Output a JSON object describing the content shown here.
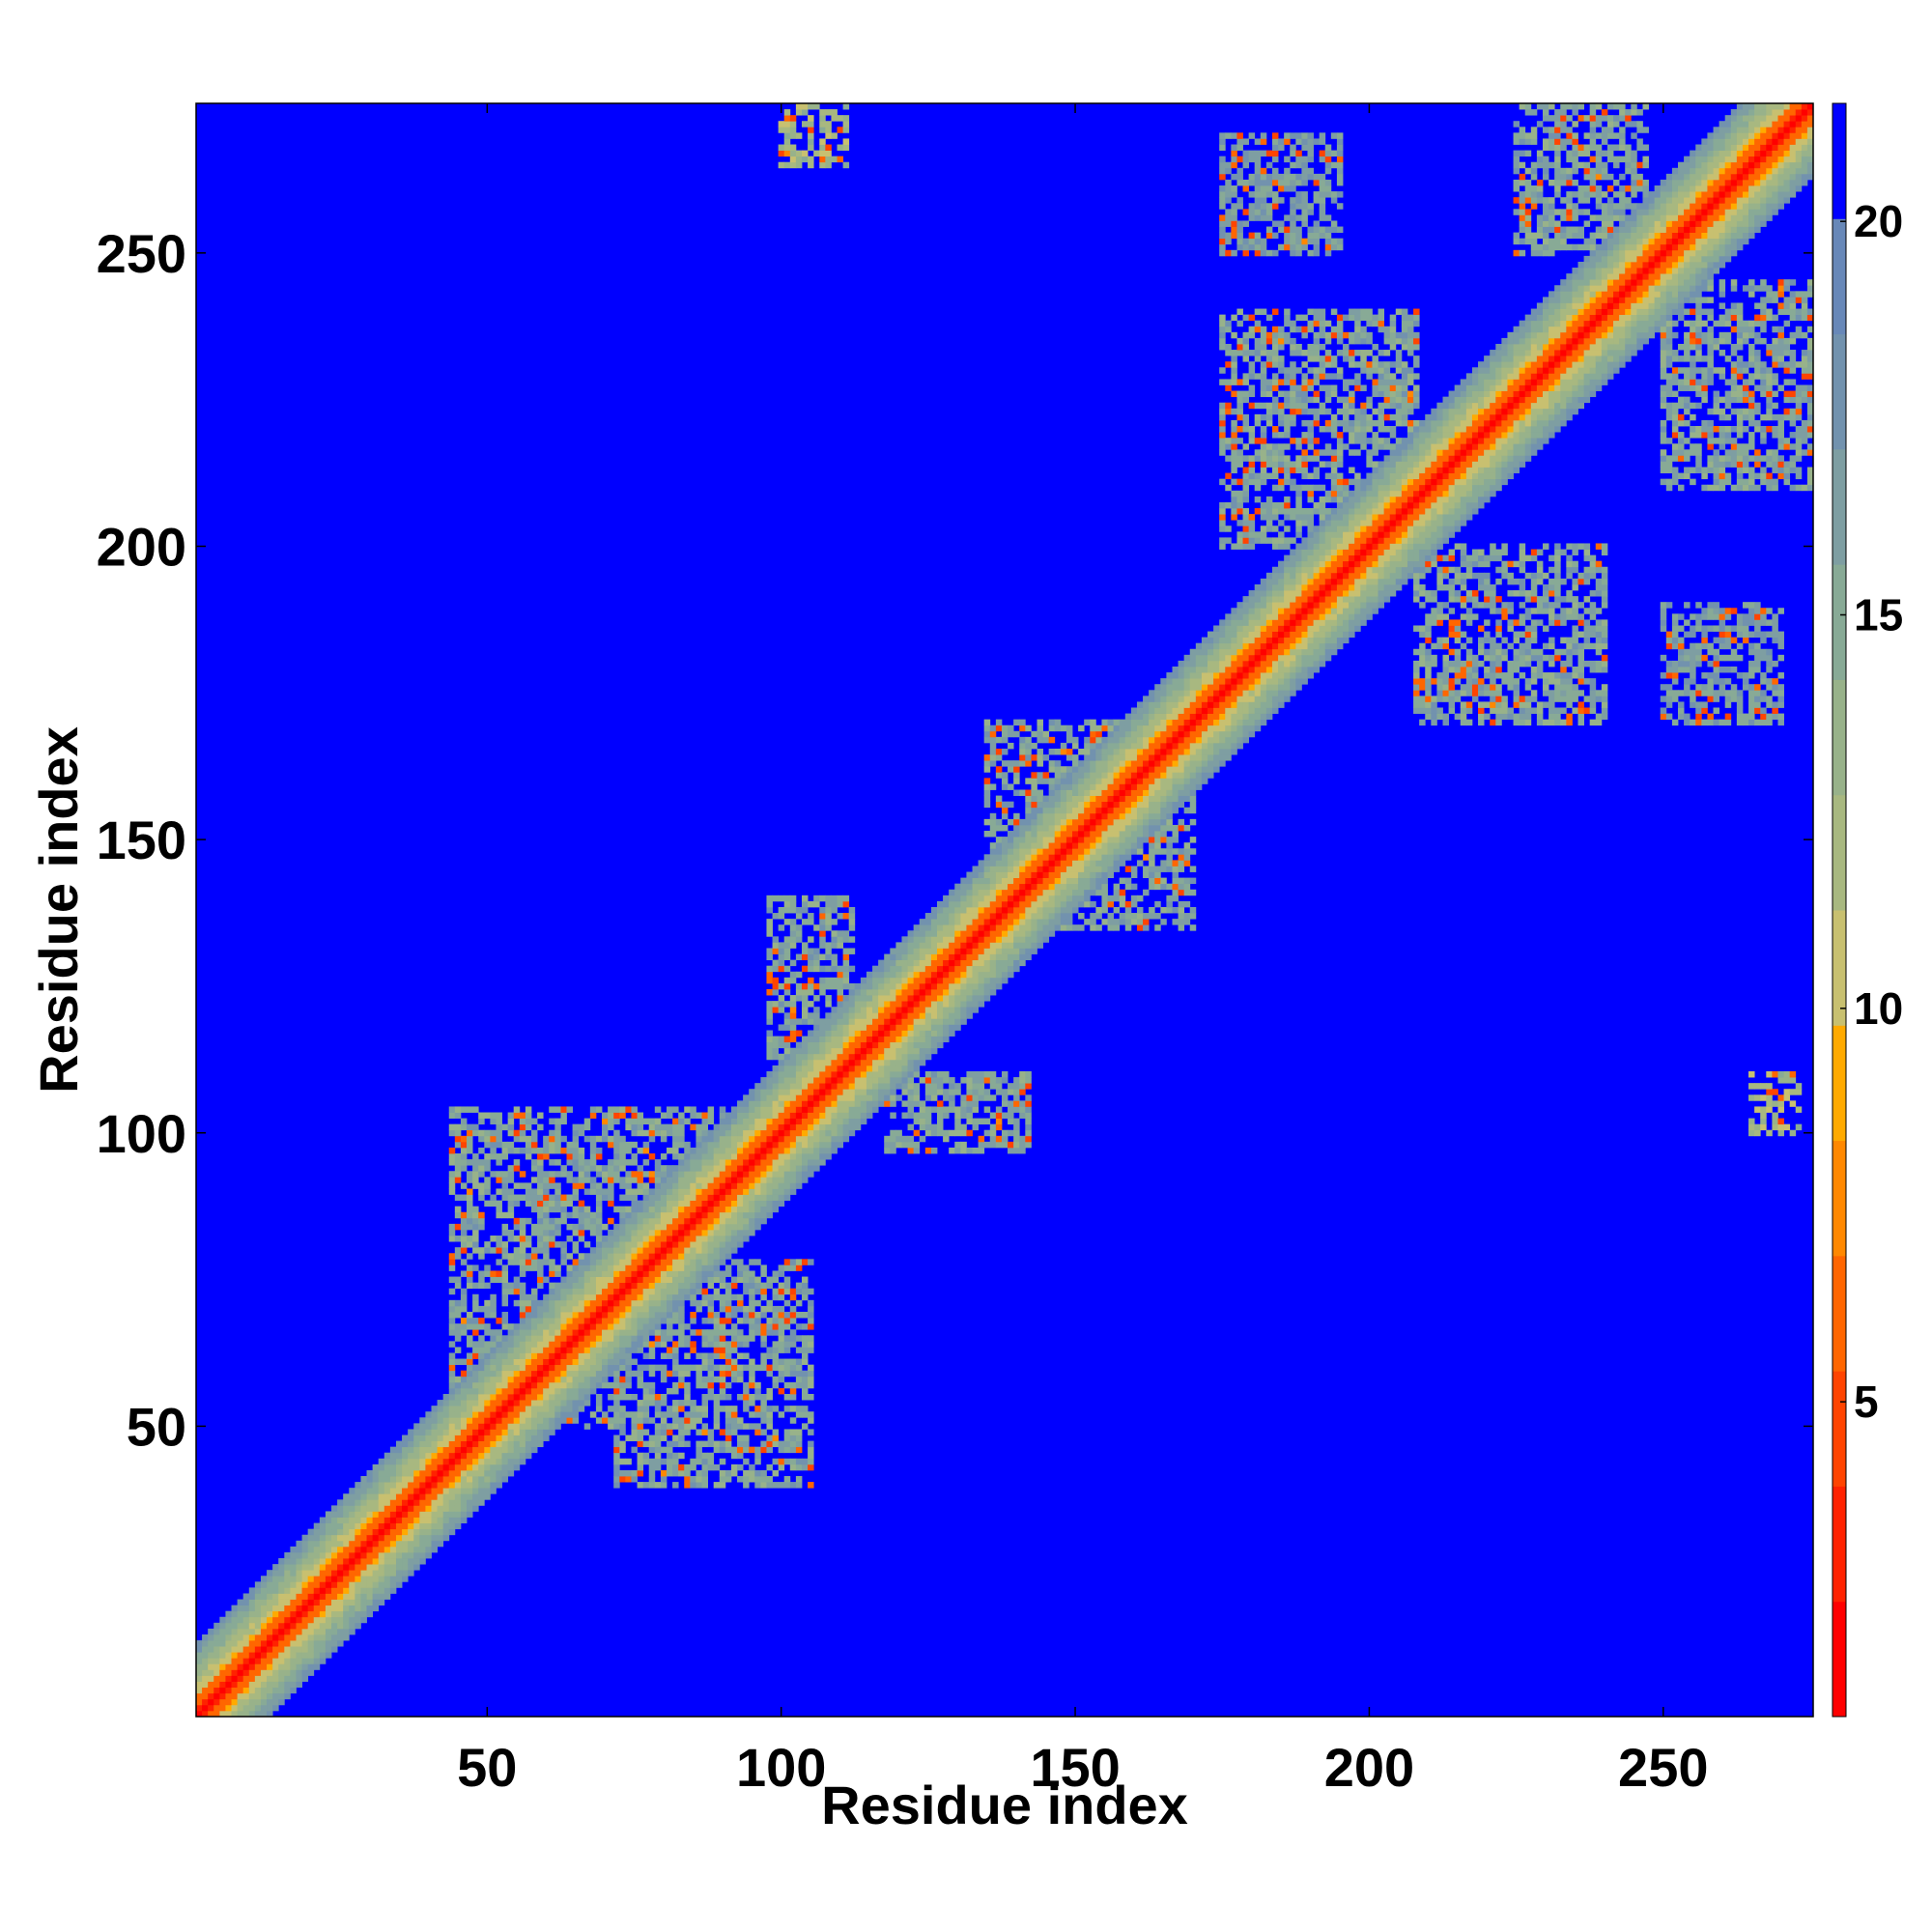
{
  "chart_data": {
    "type": "heatmap",
    "title": "",
    "xlabel": "Residue index",
    "ylabel": "Residue index",
    "xlim": [
      1,
      275
    ],
    "ylim": [
      1,
      275
    ],
    "x_ticks": [
      50,
      100,
      150,
      200,
      250
    ],
    "y_ticks": [
      50,
      100,
      150,
      200,
      250
    ],
    "x_tick_labels": [
      "50",
      "100",
      "150",
      "200",
      "250"
    ],
    "y_tick_labels": [
      "50",
      "100",
      "150",
      "200",
      "250"
    ],
    "value_range": [
      1,
      21.5
    ],
    "colorbar": {
      "ticks": [
        5,
        10,
        15,
        20
      ],
      "tick_labels": [
        "5",
        "10",
        "15",
        "20"
      ],
      "background_value": 21.5,
      "colors": [
        "#ff0000",
        "#ff2200",
        "#ff4400",
        "#ff6600",
        "#ff8800",
        "#ffaa00",
        "#c8c070",
        "#a8b880",
        "#98b28a",
        "#88aa96",
        "#7e9ea2",
        "#7292ae",
        "#6888b8",
        "#0000ff"
      ]
    },
    "grid": false,
    "diagonal": {
      "core_width": 3,
      "band_width": 12
    },
    "contact_regions": [
      {
        "name": "arm-lower-left",
        "x": [
          44,
          90
        ],
        "y": [
          50,
          104
        ],
        "value": 15.5
      },
      {
        "name": "arm-lower-right",
        "x": [
          72,
          105
        ],
        "y": [
          40,
          78
        ],
        "value": 15.5
      },
      {
        "name": "arm-mid-upper",
        "x": [
          98,
          112
        ],
        "y": [
          112,
          140
        ],
        "value": 15.5
      },
      {
        "name": "arm-mid-lower",
        "x": [
          118,
          142
        ],
        "y": [
          97,
          110
        ],
        "value": 15.5
      },
      {
        "name": "cluster-145-165",
        "x": [
          135,
          170
        ],
        "y": [
          135,
          170
        ],
        "value": 15.5
      },
      {
        "name": "arm-upper-left",
        "x": [
          175,
          208
        ],
        "y": [
          200,
          240
        ],
        "value": 15.5
      },
      {
        "name": "arm-upper-right",
        "x": [
          208,
          240
        ],
        "y": [
          170,
          200
        ],
        "value": 15.5
      },
      {
        "name": "arm-top-left",
        "x": [
          225,
          247
        ],
        "y": [
          250,
          275
        ],
        "value": 15.5
      },
      {
        "name": "arm-top-right",
        "x": [
          250,
          275
        ],
        "y": [
          210,
          245
        ],
        "value": 15.5
      },
      {
        "name": "patch-top-left",
        "x": [
          175,
          195
        ],
        "y": [
          250,
          270
        ],
        "value": 16.5
      },
      {
        "name": "patch-right-mid",
        "x": [
          250,
          270
        ],
        "y": [
          170,
          190
        ],
        "value": 16.5
      },
      {
        "name": "patch-top-100",
        "x": [
          100,
          111
        ],
        "y": [
          265,
          275
        ],
        "value": 12.5
      },
      {
        "name": "patch-right-107",
        "x": [
          265,
          273
        ],
        "y": [
          100,
          110
        ],
        "value": 12.5
      }
    ]
  }
}
